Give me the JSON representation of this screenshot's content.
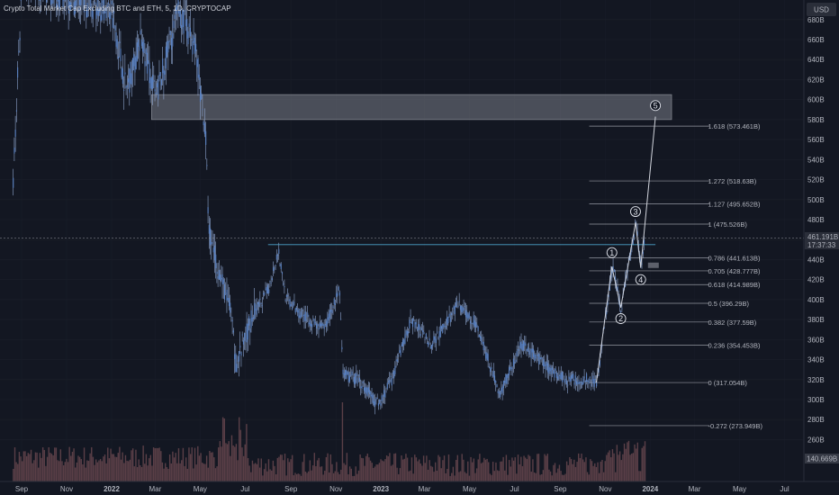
{
  "title": "Crypto Total Market Cap Excluding BTC and ETH, 5, 1D, CRYPTOCAP",
  "currency_button": "USD",
  "current_price": "461.191B",
  "countdown": "17:37:33",
  "volume_label": "140.669B",
  "colors": {
    "background": "#131722",
    "candle": "#5b83c4",
    "wick": "#8fa6cf",
    "fib_line": "#9598a1",
    "box": "#787b86",
    "resistance": "#4ca3c9",
    "volume": "#5a3f47"
  },
  "chart_data": {
    "type": "candlestick",
    "title": "Crypto Total Market Cap Excluding BTC and ETH, 5, 1D, CRYPTOCAP",
    "y_unit": "B USD",
    "ylim": [
      240,
      690
    ],
    "y_ticks": [
      "260B",
      "280B",
      "300B",
      "320B",
      "340B",
      "360B",
      "380B",
      "400B",
      "420B",
      "440B",
      "460B",
      "480B",
      "500B",
      "520B",
      "540B",
      "560B",
      "580B",
      "600B",
      "620B",
      "640B",
      "660B",
      "680B"
    ],
    "x_ticks": [
      "Sep",
      "Nov",
      "2022",
      "Mar",
      "May",
      "Jul",
      "Sep",
      "Nov",
      "2023",
      "Mar",
      "May",
      "Jul",
      "Sep",
      "Nov",
      "2024",
      "Mar",
      "May",
      "Jul"
    ],
    "price_path": [
      {
        "date": "2021-08-20",
        "value": 520
      },
      {
        "date": "2021-09-01",
        "value": 720
      },
      {
        "date": "2021-11-01",
        "value": 700
      },
      {
        "date": "2022-01-01",
        "value": 690
      },
      {
        "date": "2022-01-20",
        "value": 610
      },
      {
        "date": "2022-02-10",
        "value": 660
      },
      {
        "date": "2022-03-01",
        "value": 600
      },
      {
        "date": "2022-04-01",
        "value": 690
      },
      {
        "date": "2022-04-25",
        "value": 650
      },
      {
        "date": "2022-05-08",
        "value": 560
      },
      {
        "date": "2022-05-12",
        "value": 470
      },
      {
        "date": "2022-05-25",
        "value": 430
      },
      {
        "date": "2022-06-10",
        "value": 390
      },
      {
        "date": "2022-06-18",
        "value": 335
      },
      {
        "date": "2022-07-08",
        "value": 380
      },
      {
        "date": "2022-08-01",
        "value": 410
      },
      {
        "date": "2022-08-14",
        "value": 450
      },
      {
        "date": "2022-08-25",
        "value": 400
      },
      {
        "date": "2022-09-15",
        "value": 385
      },
      {
        "date": "2022-10-15",
        "value": 370
      },
      {
        "date": "2022-11-05",
        "value": 410
      },
      {
        "date": "2022-11-10",
        "value": 325
      },
      {
        "date": "2022-12-01",
        "value": 320
      },
      {
        "date": "2022-12-28",
        "value": 295
      },
      {
        "date": "2023-01-15",
        "value": 320
      },
      {
        "date": "2023-02-10",
        "value": 380
      },
      {
        "date": "2023-03-10",
        "value": 355
      },
      {
        "date": "2023-04-15",
        "value": 395
      },
      {
        "date": "2023-05-10",
        "value": 375
      },
      {
        "date": "2023-06-10",
        "value": 305
      },
      {
        "date": "2023-07-10",
        "value": 355
      },
      {
        "date": "2023-08-18",
        "value": 330
      },
      {
        "date": "2023-09-10",
        "value": 320
      },
      {
        "date": "2023-10-10",
        "value": 320
      },
      {
        "date": "2023-10-20",
        "value": 317
      },
      {
        "date": "2023-11-10",
        "value": 433
      },
      {
        "date": "2023-11-22",
        "value": 392
      },
      {
        "date": "2023-12-12",
        "value": 477
      },
      {
        "date": "2023-12-19",
        "value": 432
      },
      {
        "date": "2023-12-24",
        "value": 461
      }
    ],
    "fib_levels": [
      {
        "label": "1.618 (573.461B)",
        "value": 573.461
      },
      {
        "label": "1.272 (518.63B)",
        "value": 518.63
      },
      {
        "label": "1.127 (495.652B)",
        "value": 495.652
      },
      {
        "label": "1 (475.526B)",
        "value": 475.526
      },
      {
        "label": "0.786 (441.613B)",
        "value": 441.613
      },
      {
        "label": "0.705 (428.777B)",
        "value": 428.777
      },
      {
        "label": "0.618 (414.989B)",
        "value": 414.989
      },
      {
        "label": "0.5 (396.29B)",
        "value": 396.29
      },
      {
        "label": "0.382 (377.59B)",
        "value": 377.59
      },
      {
        "label": "0.236 (354.453B)",
        "value": 354.453
      },
      {
        "label": "0 (317.054B)",
        "value": 317.054
      },
      {
        "label": "-0.272 (273.949B)",
        "value": 273.949
      }
    ],
    "fib_range": {
      "start": "2023-10-20",
      "end": "2024-01-20"
    },
    "resistance_zone": {
      "start": "2022-03-01",
      "end": "2024-01-25",
      "low": 580,
      "high": 605
    },
    "horizontal_line": {
      "start": "2022-08-01",
      "end": "2024-01-08",
      "value": 455
    },
    "elliott_waves": [
      {
        "label": "1",
        "date": "2023-11-10",
        "value": 433,
        "label_value": 447
      },
      {
        "label": "2",
        "date": "2023-11-22",
        "value": 392,
        "label_value": 381
      },
      {
        "label": "3",
        "date": "2023-12-12",
        "value": 477,
        "label_value": 488
      },
      {
        "label": "4",
        "date": "2023-12-19",
        "value": 432,
        "label_value": 420
      },
      {
        "label": "5",
        "date": "2024-01-08",
        "value": 583,
        "label_value": 594
      }
    ],
    "wave_start": {
      "date": "2023-10-20",
      "value": 317
    },
    "volume_spike": {
      "date": "2022-11-09",
      "relative": 1.0
    }
  }
}
